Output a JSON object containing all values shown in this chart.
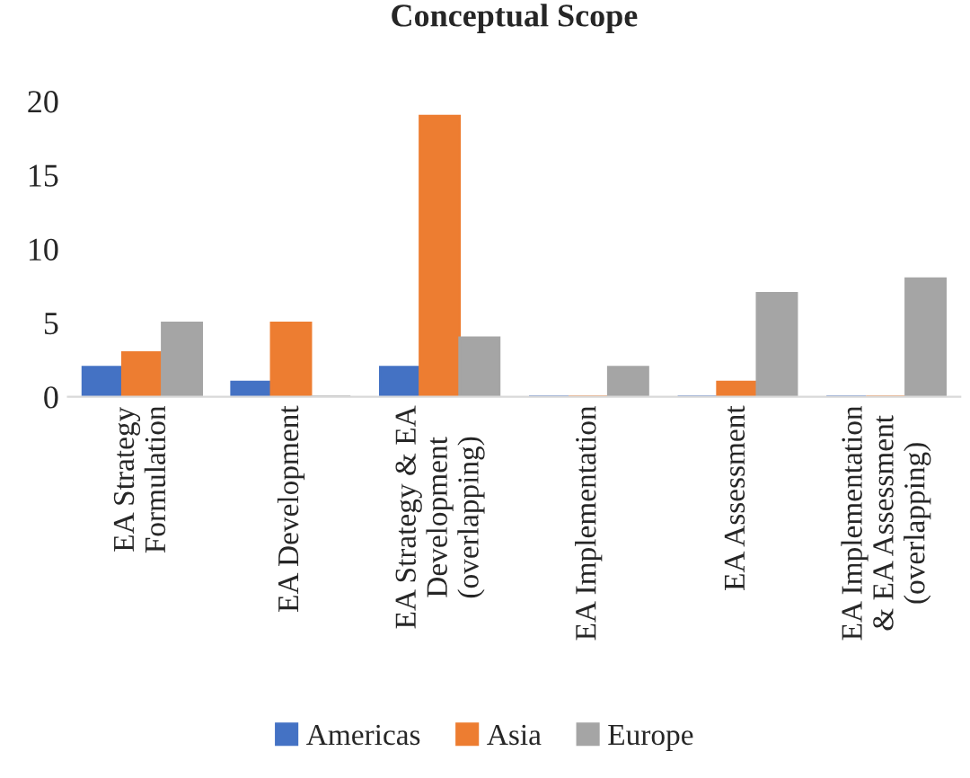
{
  "chart_data": {
    "type": "bar",
    "title": "Conceptual Scope",
    "categories": [
      "EA Strategy Formulation",
      "EA Development",
      "EA Strategy & EA Development (overlapping)",
      "EA Implementation",
      "EA Assessment",
      "EA Implementation & EA Assessment (overlapping)"
    ],
    "series": [
      {
        "name": "Americas",
        "color": "#4472c4",
        "values": [
          2,
          1,
          2,
          0,
          0,
          0
        ]
      },
      {
        "name": "Asia",
        "color": "#ed7d31",
        "values": [
          3,
          5,
          19,
          0,
          1,
          0
        ]
      },
      {
        "name": "Europe",
        "color": "#a5a5a5",
        "values": [
          5,
          0,
          4,
          2,
          7,
          8
        ]
      }
    ],
    "ylim": [
      0,
      20
    ],
    "yticks": [
      0,
      5,
      10,
      15,
      20
    ],
    "grid": false,
    "legend": "bottom"
  }
}
